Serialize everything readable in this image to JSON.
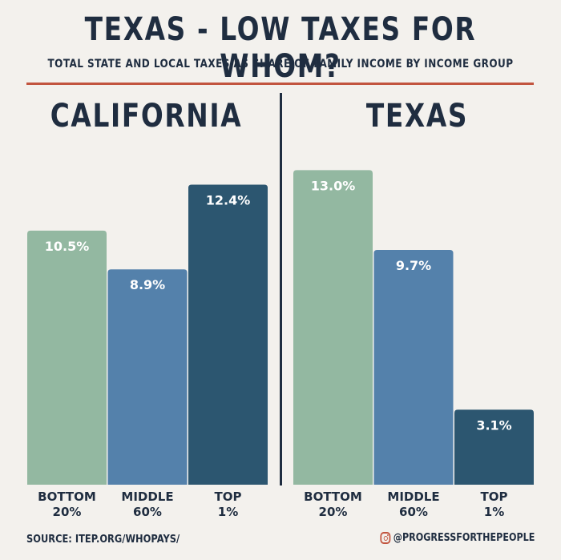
{
  "title": "TEXAS - LOW TAXES FOR WHOM?",
  "subtitle": "TOTAL STATE AND LOCAL TAXES AS SHARE OF FAMILY INCOME BY INCOME GROUP",
  "footer": {
    "source": "SOURCE: ITEP.ORG/WHOPAYS/",
    "handle": "@PROGRESSFORTHEPEOPLE",
    "handle_icon": "instagram-icon"
  },
  "colors": {
    "bottom": "#93b8a1",
    "middle": "#5481ab",
    "top": "#2c5670",
    "accent_rule": "#c2553f",
    "text": "#1f2d40",
    "background": "#f3f1ed"
  },
  "chart_data": [
    {
      "type": "bar",
      "title": "CALIFORNIA",
      "categories": [
        [
          "BOTTOM",
          "20%"
        ],
        [
          "MIDDLE",
          "60%"
        ],
        [
          "TOP",
          "1%"
        ]
      ],
      "values": [
        10.5,
        8.9,
        12.4
      ],
      "value_labels": [
        "10.5%",
        "8.9%",
        "12.4%"
      ],
      "ylim": [
        0,
        14
      ],
      "grid": false,
      "xlabel": "",
      "ylabel": ""
    },
    {
      "type": "bar",
      "title": "TEXAS",
      "categories": [
        [
          "BOTTOM",
          "20%"
        ],
        [
          "MIDDLE",
          "60%"
        ],
        [
          "TOP",
          "1%"
        ]
      ],
      "values": [
        13.0,
        9.7,
        3.1
      ],
      "value_labels": [
        "13.0%",
        "9.7%",
        "3.1%"
      ],
      "ylim": [
        0,
        14
      ],
      "grid": false,
      "xlabel": "",
      "ylabel": ""
    }
  ]
}
